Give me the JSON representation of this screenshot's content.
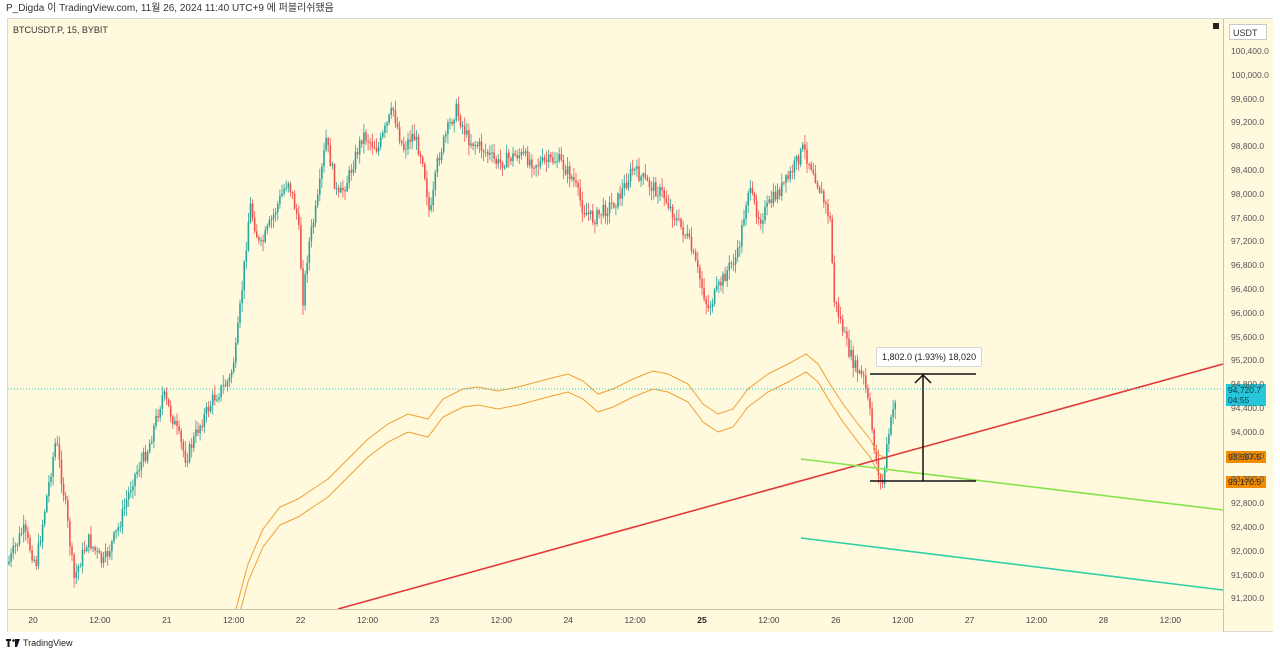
{
  "header": {
    "attribution": "P_Digda 이 TradingView.com, 11월 26, 2024 11:40 UTC+9 에 퍼블리쉬됐음"
  },
  "chart": {
    "symbol": "BTCUSDT.P, 15, BYBIT",
    "currency": "USDT",
    "current_price": "94,720.7",
    "countdown": "04:55",
    "label_green_line": "93,597.5",
    "label_measure_bottom": "93,170.5",
    "measure_text": "1,802.0 (1.93%) 18,020",
    "price_ticks": [
      "100,400.0",
      "100,000.0",
      "99,600.0",
      "99,200.0",
      "98,800.0",
      "98,400.0",
      "98,000.0",
      "97,600.0",
      "97,200.0",
      "96,800.0",
      "96,400.0",
      "96,000.0",
      "95,600.0",
      "95,200.0",
      "94,800.0",
      "94,400.0",
      "94,000.0",
      "93,600.0",
      "93,200.0",
      "92,800.0",
      "92,400.0",
      "92,000.0",
      "91,600.0",
      "91,200.0"
    ],
    "time_ticks": [
      "20",
      "12:00",
      "21",
      "12:00",
      "22",
      "12:00",
      "23",
      "12:00",
      "24",
      "12:00",
      "25",
      "12:00",
      "26",
      "12:00",
      "27",
      "12:00",
      "28",
      "12:00"
    ],
    "bold_time_tick": "25",
    "colors": {
      "background": "#fff9de",
      "up": "#26a69a",
      "down": "#ef5350",
      "trend_red": "#e03a3a",
      "green_line": "#86e34a",
      "teal_line": "#2ed1a3",
      "band": "#f0a030"
    }
  },
  "footer": {
    "brand": "TradingView",
    "logo_icon": "tradingview-logo-icon"
  }
}
